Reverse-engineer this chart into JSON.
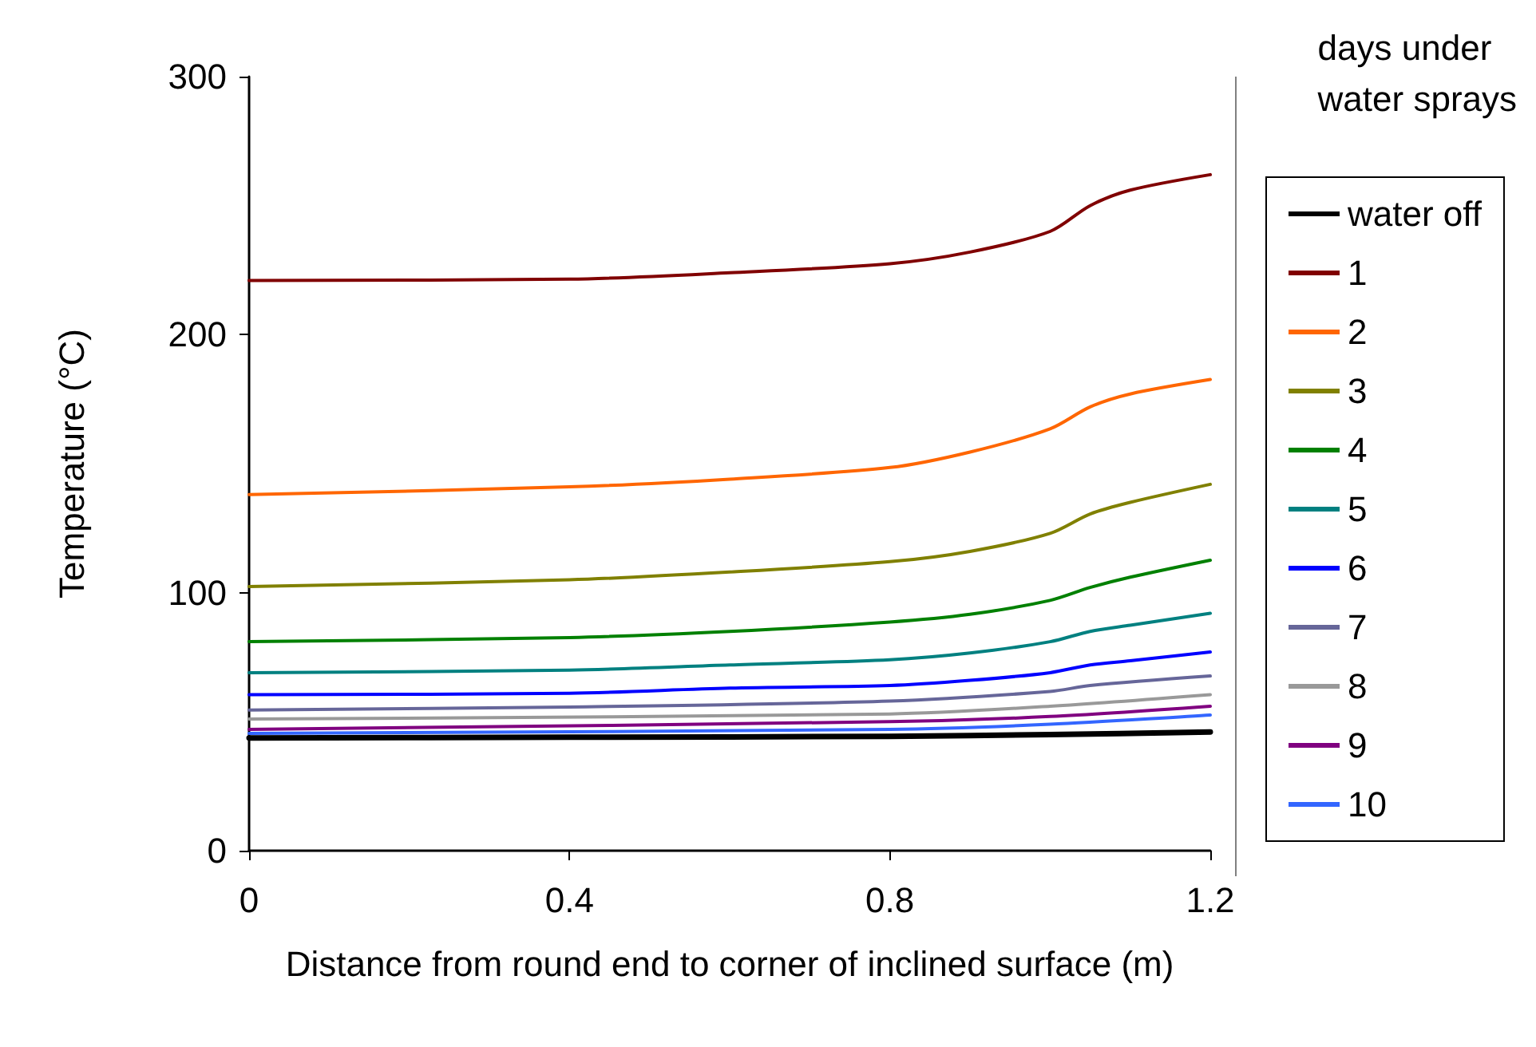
{
  "chart_data": {
    "type": "line",
    "xlabel": "Distance from round end to corner of inclined surface (m)",
    "ylabel": "Temperature (°C)",
    "legend_title": "days under water sprays",
    "xlim": [
      0,
      1.2
    ],
    "xticks": [
      0,
      0.4,
      0.8,
      1.2
    ],
    "ylim": [
      0,
      300
    ],
    "yticks": [
      0,
      100,
      200,
      300
    ],
    "grid": false,
    "legend": "right",
    "marker": "none",
    "line_style": "solid",
    "series": [
      {
        "name": "water off",
        "color": "#000000",
        "x": [
          0,
          0.4,
          0.8,
          1.0,
          1.2
        ],
        "values": [
          43.7,
          44,
          44.3,
          45,
          46
        ]
      },
      {
        "name": "1",
        "color": "#800000",
        "x": [
          0,
          0.4,
          0.6,
          0.8,
          0.9,
          1.0,
          1.05,
          1.1,
          1.2
        ],
        "values": [
          221,
          221.5,
          224,
          227.5,
          232,
          240,
          250,
          256,
          262
        ]
      },
      {
        "name": "2",
        "color": "#ff6600",
        "x": [
          0,
          0.4,
          0.6,
          0.8,
          0.9,
          1.0,
          1.05,
          1.1,
          1.2
        ],
        "values": [
          138,
          141,
          144,
          148.5,
          154.5,
          163.5,
          172,
          177,
          182.6
        ]
      },
      {
        "name": "3",
        "color": "#808000",
        "x": [
          0,
          0.4,
          0.6,
          0.8,
          0.9,
          1.0,
          1.05,
          1.1,
          1.2
        ],
        "values": [
          102.4,
          105,
          108,
          112,
          116,
          123,
          130.5,
          135,
          142
        ]
      },
      {
        "name": "4",
        "color": "#008000",
        "x": [
          0,
          0.4,
          0.6,
          0.8,
          0.9,
          1.0,
          1.05,
          1.1,
          1.2
        ],
        "values": [
          81,
          82.6,
          85,
          88.6,
          91.6,
          97,
          102,
          106,
          112.6
        ]
      },
      {
        "name": "5",
        "color": "#008080",
        "x": [
          0,
          0.4,
          0.6,
          0.8,
          0.9,
          1.0,
          1.05,
          1.1,
          1.2
        ],
        "values": [
          69,
          70,
          72,
          74,
          76.6,
          81,
          85,
          87.4,
          92
        ]
      },
      {
        "name": "6",
        "color": "#0000ff",
        "x": [
          0,
          0.4,
          0.6,
          0.8,
          0.9,
          1.0,
          1.05,
          1.1,
          1.2
        ],
        "values": [
          60.5,
          61,
          63,
          64,
          66,
          69,
          72,
          73.6,
          77
        ]
      },
      {
        "name": "7",
        "color": "#666699",
        "x": [
          0,
          0.4,
          0.8,
          1.0,
          1.05,
          1.2
        ],
        "values": [
          54.5,
          55.7,
          58,
          61.7,
          64,
          67.7
        ]
      },
      {
        "name": "8",
        "color": "#999999",
        "x": [
          0,
          0.8,
          1.0,
          1.2
        ],
        "values": [
          51,
          53,
          56,
          60.5
        ]
      },
      {
        "name": "9",
        "color": "#800080",
        "x": [
          0,
          0.8,
          1.0,
          1.2
        ],
        "values": [
          47,
          50,
          52,
          56
        ]
      },
      {
        "name": "10",
        "color": "#3366ff",
        "x": [
          0,
          0.8,
          1.0,
          1.2
        ],
        "values": [
          45.5,
          47,
          49,
          52.6
        ]
      }
    ]
  }
}
